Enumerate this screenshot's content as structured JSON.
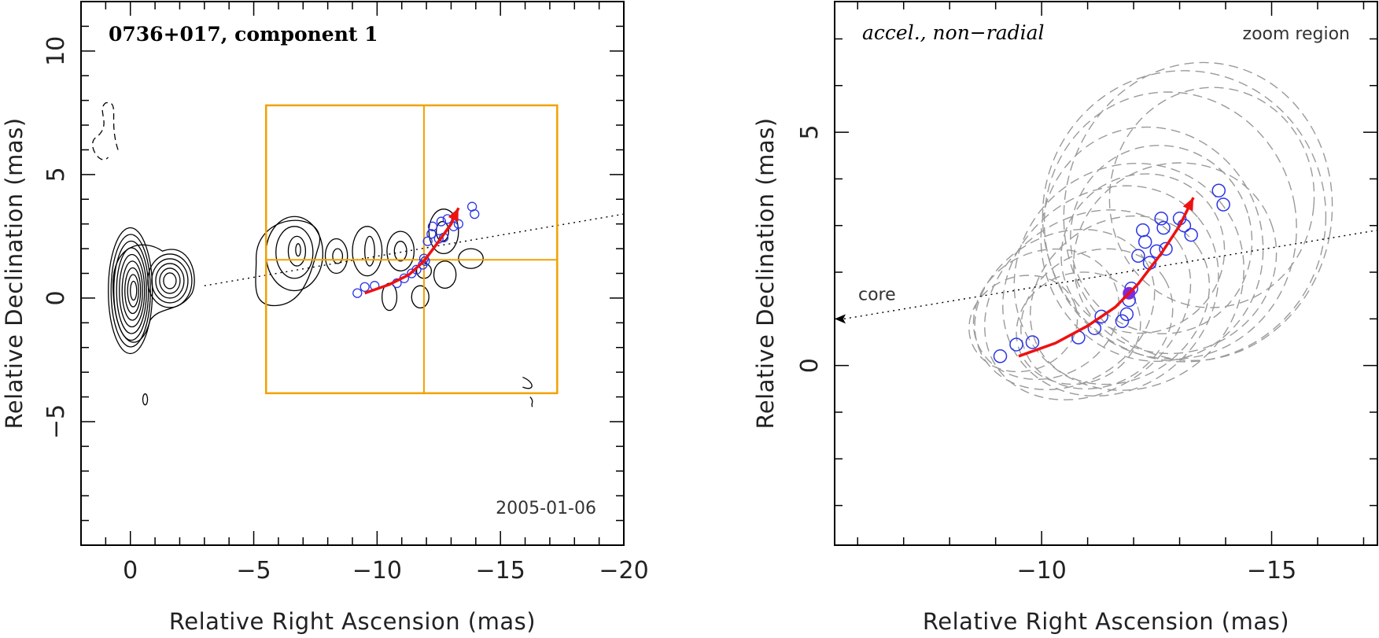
{
  "chart_data": [
    {
      "type": "scatter",
      "title": "0736+017, component 1",
      "epoch_label": "2005-01-06",
      "xlabel": "Relative Right Ascension (mas)",
      "ylabel": "Relative Declination (mas)",
      "xlim": [
        2,
        -20
      ],
      "ylim": [
        -10,
        12
      ],
      "xticks": [
        0,
        -5,
        -10,
        -15,
        -20
      ],
      "xtick_labels": [
        "0",
        "−5",
        "−10",
        "−15",
        "−20"
      ],
      "yticks": [
        -5,
        0,
        5,
        10
      ],
      "ytick_labels": [
        "−5",
        "0",
        "5",
        "10"
      ],
      "component_positions": [
        {
          "x": -9.2,
          "y": 0.2
        },
        {
          "x": -9.5,
          "y": 0.45
        },
        {
          "x": -9.9,
          "y": 0.5
        },
        {
          "x": -10.8,
          "y": 0.6
        },
        {
          "x": -11.1,
          "y": 0.8
        },
        {
          "x": -11.4,
          "y": 1.0
        },
        {
          "x": -11.6,
          "y": 1.15
        },
        {
          "x": -11.85,
          "y": 1.35
        },
        {
          "x": -11.9,
          "y": 1.6
        },
        {
          "x": -11.95,
          "y": 1.5
        },
        {
          "x": -12.2,
          "y": 2.6
        },
        {
          "x": -12.25,
          "y": 2.9
        },
        {
          "x": -12.5,
          "y": 2.4
        },
        {
          "x": -12.6,
          "y": 3.1
        },
        {
          "x": -12.85,
          "y": 3.2
        },
        {
          "x": -13.1,
          "y": 2.9
        },
        {
          "x": -13.3,
          "y": 3.0
        },
        {
          "x": -13.85,
          "y": 3.7
        },
        {
          "x": -13.95,
          "y": 3.4
        },
        {
          "x": -12.05,
          "y": 2.3
        },
        {
          "x": -12.7,
          "y": 2.45
        }
      ],
      "fit_curve": [
        {
          "x": -9.5,
          "y": 0.2
        },
        {
          "x": -10.5,
          "y": 0.55
        },
        {
          "x": -11.3,
          "y": 0.95
        },
        {
          "x": -11.9,
          "y": 1.5
        },
        {
          "x": -12.5,
          "y": 2.3
        },
        {
          "x": -13.0,
          "y": 3.0
        },
        {
          "x": -13.3,
          "y": 3.65
        }
      ],
      "axis_line": [
        {
          "x": -3,
          "y": 0.5
        },
        {
          "x": -20,
          "y": 3.4
        }
      ],
      "zoom_box": {
        "x": [
          -5.5,
          -17.3
        ],
        "y": [
          -3.85,
          7.8
        ]
      },
      "zoom_cross": {
        "x": -11.9,
        "y": 1.55
      }
    },
    {
      "type": "scatter",
      "annotation": "accel., non−radial",
      "region_label": "zoom region",
      "core_label": "core",
      "xlabel": "Relative Right Ascension (mas)",
      "ylabel": "Relative Declination (mas)",
      "xlim": [
        -5.5,
        -17.3
      ],
      "ylim": [
        -3.85,
        7.8
      ],
      "xticks": [
        -10,
        -15
      ],
      "xtick_labels": [
        "−10",
        "−15"
      ],
      "yticks": [
        0,
        5
      ],
      "ytick_labels": [
        "0",
        "5"
      ],
      "component_positions": [
        {
          "x": -9.1,
          "y": 0.2
        },
        {
          "x": -9.45,
          "y": 0.45
        },
        {
          "x": -9.8,
          "y": 0.5
        },
        {
          "x": -10.8,
          "y": 0.6
        },
        {
          "x": -11.15,
          "y": 0.8
        },
        {
          "x": -11.3,
          "y": 1.05
        },
        {
          "x": -11.75,
          "y": 0.95
        },
        {
          "x": -11.85,
          "y": 1.1
        },
        {
          "x": -11.9,
          "y": 1.4
        },
        {
          "x": -11.95,
          "y": 1.65
        },
        {
          "x": -12.1,
          "y": 2.35
        },
        {
          "x": -12.2,
          "y": 2.9
        },
        {
          "x": -12.25,
          "y": 2.65
        },
        {
          "x": -12.35,
          "y": 2.2
        },
        {
          "x": -12.5,
          "y": 2.45
        },
        {
          "x": -12.6,
          "y": 3.15
        },
        {
          "x": -12.65,
          "y": 2.95
        },
        {
          "x": -13.0,
          "y": 3.15
        },
        {
          "x": -13.1,
          "y": 3.0
        },
        {
          "x": -13.25,
          "y": 2.8
        },
        {
          "x": -13.85,
          "y": 3.75
        },
        {
          "x": -13.95,
          "y": 3.45
        },
        {
          "x": -12.7,
          "y": 2.5
        }
      ],
      "reference_point": {
        "x": -11.9,
        "y": 1.55
      },
      "fit_curve": [
        {
          "x": -9.5,
          "y": 0.2
        },
        {
          "x": -10.3,
          "y": 0.48
        },
        {
          "x": -11.0,
          "y": 0.85
        },
        {
          "x": -11.6,
          "y": 1.25
        },
        {
          "x": -12.1,
          "y": 1.75
        },
        {
          "x": -12.6,
          "y": 2.4
        },
        {
          "x": -13.0,
          "y": 3.0
        },
        {
          "x": -13.3,
          "y": 3.6
        }
      ],
      "axis_line": [
        {
          "x": -5.5,
          "y": 1.0
        },
        {
          "x": -17.3,
          "y": 2.9
        }
      ]
    }
  ]
}
